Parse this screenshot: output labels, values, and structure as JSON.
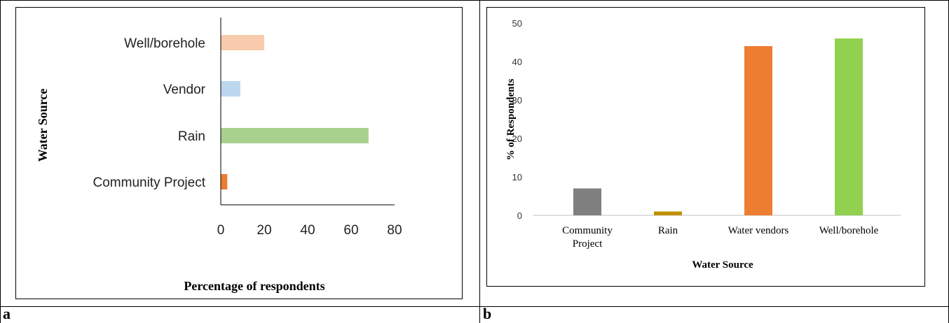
{
  "panels": [
    {
      "letter": "a"
    },
    {
      "letter": "b"
    }
  ],
  "chart_data": [
    {
      "type": "bar",
      "orientation": "horizontal",
      "categories": [
        "Well/borehole",
        "Vendor",
        "Rain",
        "Community Project"
      ],
      "values": [
        20,
        9,
        68,
        3
      ],
      "colors": [
        "#f8cbad",
        "#bdd7ee",
        "#a9d18e",
        "#ed7d31"
      ],
      "xlabel": "Percentage of respondents",
      "ylabel": "Water Source",
      "xlim": [
        0,
        80
      ],
      "xticks": [
        "0",
        "20",
        "40",
        "60",
        "80"
      ],
      "grid": false,
      "legend": "none"
    },
    {
      "type": "bar",
      "orientation": "vertical",
      "categories": [
        "Community Project",
        "Rain",
        "Water vendors",
        "Well/borehole"
      ],
      "values": [
        7,
        1,
        44,
        46
      ],
      "colors": [
        "#7f7f7f",
        "#bf9000",
        "#ed7d31",
        "#92d050"
      ],
      "xlabel": "Water Source",
      "ylabel": "% of Respondents",
      "ylim": [
        0,
        50
      ],
      "yticks": [
        "0",
        "10",
        "20",
        "30",
        "40",
        "50"
      ],
      "grid": false,
      "legend": "none"
    }
  ]
}
